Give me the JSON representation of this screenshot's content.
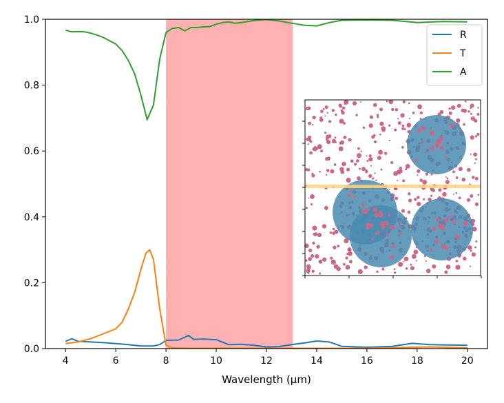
{
  "chart_data": {
    "type": "line",
    "title": "",
    "xlabel": "Wavelength (μm)",
    "ylabel": "",
    "xlim": [
      3.2,
      20.8
    ],
    "ylim": [
      0,
      1
    ],
    "xticks": [
      "4",
      "6",
      "8",
      "10",
      "12",
      "14",
      "16",
      "18",
      "20"
    ],
    "yticks": [
      "0.0",
      "0.2",
      "0.4",
      "0.6",
      "0.8",
      "1.0"
    ],
    "grid": false,
    "legend_position": "top-right",
    "shaded_span": {
      "x_start": 8.0,
      "x_end": 13.05,
      "color": "#ffb0b0"
    },
    "series": [
      {
        "name": "R",
        "color": "#1f77b4",
        "x": [
          4,
          4.25,
          4.5,
          5,
          5.5,
          6,
          6.5,
          7,
          7.5,
          7.75,
          8,
          8.5,
          8.9,
          9.1,
          9.5,
          10,
          10.5,
          11,
          11.5,
          12,
          12.5,
          13,
          13.5,
          14,
          14.5,
          15,
          16,
          17,
          17.8,
          18.5,
          20
        ],
        "y": [
          0.022,
          0.03,
          0.022,
          0.02,
          0.018,
          0.015,
          0.012,
          0.008,
          0.008,
          0.012,
          0.025,
          0.026,
          0.04,
          0.028,
          0.029,
          0.027,
          0.012,
          0.013,
          0.01,
          0.005,
          0.006,
          0.012,
          0.017,
          0.023,
          0.02,
          0.007,
          0.004,
          0.007,
          0.016,
          0.012,
          0.01
        ]
      },
      {
        "name": "T",
        "color": "#ff7f0e",
        "x": [
          4,
          4.5,
          5,
          5.5,
          6,
          6.25,
          6.5,
          6.75,
          7,
          7.2,
          7.35,
          7.5,
          7.75,
          8,
          8.25,
          9,
          12,
          16,
          18.5,
          20
        ],
        "y": [
          0.015,
          0.02,
          0.03,
          0.045,
          0.06,
          0.08,
          0.12,
          0.17,
          0.24,
          0.29,
          0.3,
          0.27,
          0.12,
          0.01,
          0.002,
          0.001,
          0.001,
          0.001,
          0.005,
          0.002
        ]
      },
      {
        "name": "A",
        "color": "#2ca02c",
        "x": [
          4,
          4.25,
          4.5,
          4.75,
          5,
          5.25,
          5.5,
          5.75,
          6,
          6.25,
          6.5,
          6.75,
          7,
          7.25,
          7.5,
          7.75,
          8,
          8.25,
          8.5,
          8.75,
          9,
          9.25,
          9.5,
          9.75,
          10,
          10.25,
          10.5,
          10.75,
          11,
          11.25,
          11.5,
          11.75,
          12,
          12.5,
          13,
          13.5,
          14,
          14.5,
          15,
          16,
          17,
          18,
          19,
          20
        ],
        "y": [
          0.967,
          0.962,
          0.963,
          0.962,
          0.958,
          0.952,
          0.945,
          0.935,
          0.925,
          0.905,
          0.875,
          0.835,
          0.77,
          0.695,
          0.74,
          0.88,
          0.96,
          0.972,
          0.975,
          0.965,
          0.975,
          0.975,
          0.977,
          0.978,
          0.985,
          0.99,
          0.992,
          0.988,
          0.99,
          0.993,
          0.996,
          0.998,
          0.999,
          0.995,
          0.988,
          0.982,
          0.98,
          0.99,
          0.997,
          0.998,
          0.997,
          0.99,
          0.993,
          0.992
        ]
      }
    ],
    "inset": {
      "type": "image",
      "particle_color": "#cc6688",
      "disk_color": "#4a8bb0",
      "line_color": "#ffd27f"
    }
  }
}
